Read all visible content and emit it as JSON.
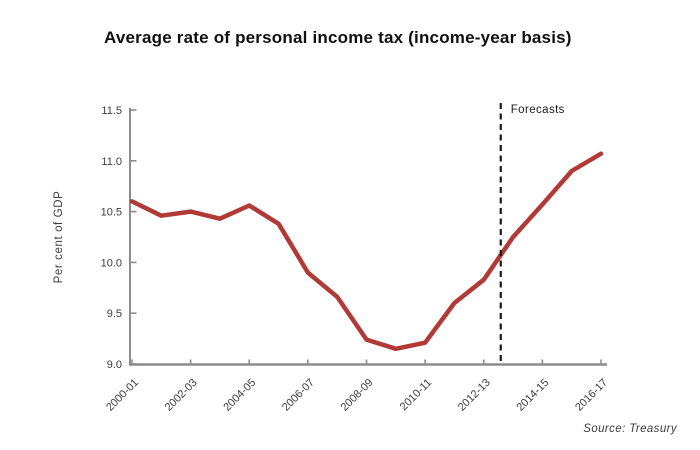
{
  "chart_data": {
    "type": "line",
    "title": "Average rate of personal income tax (income-year basis)",
    "ylabel": "Per cent of GDP",
    "xlabel": "",
    "ylim": [
      9.0,
      11.5
    ],
    "ytick_step": 0.5,
    "ytick_labels": [
      "9.0",
      "9.5",
      "10.0",
      "10.5",
      "11.0",
      "11.5"
    ],
    "x": [
      "2000-01",
      "2001-02",
      "2002-03",
      "2003-04",
      "2004-05",
      "2005-06",
      "2006-07",
      "2007-08",
      "2008-09",
      "2009-10",
      "2010-11",
      "2011-12",
      "2012-13",
      "2013-14",
      "2014-15",
      "2015-16",
      "2016-17"
    ],
    "x_tick_labels": [
      "2000-01",
      "2002-03",
      "2004-05",
      "2006-07",
      "2008-09",
      "2010-11",
      "2012-13",
      "2014-15",
      "2016-17"
    ],
    "x_tick_every": 2,
    "grid": false,
    "legend": "none",
    "series": [
      {
        "name": "Average rate of personal income tax",
        "color": "#b13a37",
        "values": [
          10.6,
          10.46,
          10.5,
          10.43,
          10.56,
          10.38,
          9.9,
          9.66,
          9.24,
          9.15,
          9.21,
          9.6,
          9.83,
          10.25,
          10.57,
          10.9,
          11.07
        ]
      }
    ],
    "annotation": {
      "type": "vline",
      "label": "Forecasts",
      "x_index": 12.58,
      "line_style": "dashed",
      "color": "#1a1a1a"
    },
    "source_note": "Source: Treasury",
    "axis_color": "#8c8c8c",
    "text_color": "#3d3d3d"
  }
}
